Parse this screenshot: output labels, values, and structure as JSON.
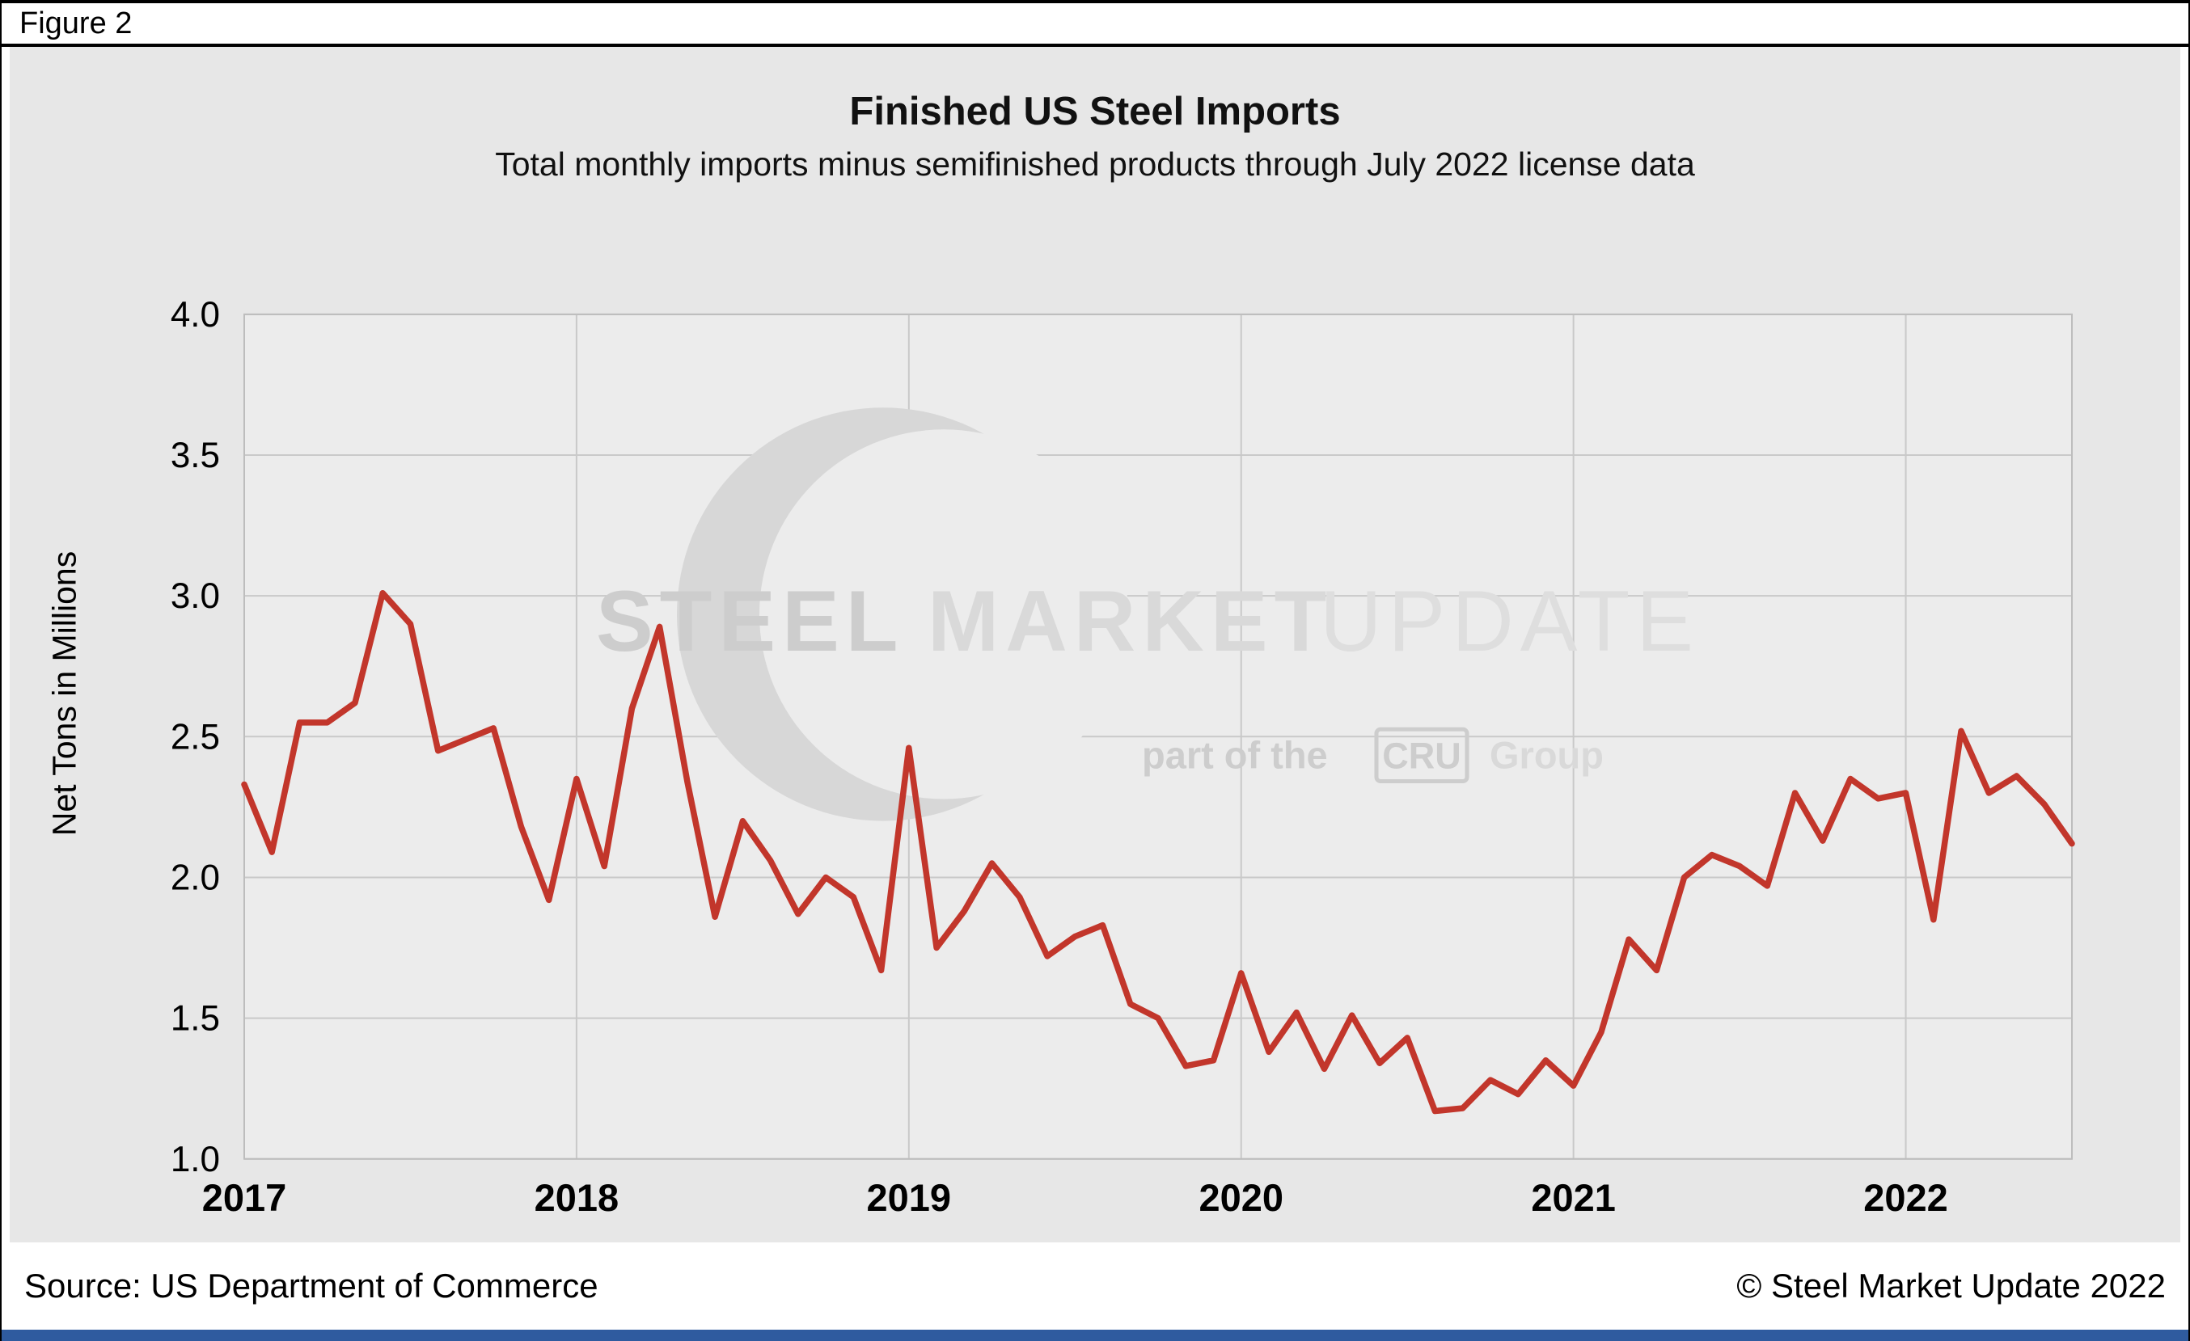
{
  "figure_label": "Figure 2",
  "chart_data": {
    "type": "line",
    "title": "Finished US Steel Imports",
    "subtitle": "Total monthly imports minus semifinished products through July 2022 license data",
    "ylabel": "Net Tons in Millions",
    "ylim": [
      1.0,
      4.0
    ],
    "yticks": [
      1.0,
      1.5,
      2.0,
      2.5,
      3.0,
      3.5,
      4.0
    ],
    "grid": true,
    "x_start": "2017-01",
    "x_end": "2022-07",
    "frequency": "monthly",
    "x_year_labels": [
      "2017",
      "2018",
      "2019",
      "2020",
      "2021",
      "2022"
    ],
    "x_year_tick_indices": [
      0,
      12,
      24,
      36,
      48,
      60
    ],
    "series": [
      {
        "name": "Finished US steel imports (net tons, millions)",
        "color": "#c2362b",
        "values": [
          2.33,
          2.09,
          2.55,
          2.55,
          2.62,
          3.01,
          2.9,
          2.45,
          2.49,
          2.53,
          2.18,
          1.92,
          2.35,
          2.04,
          2.6,
          2.89,
          2.34,
          1.86,
          2.2,
          2.06,
          1.87,
          2.0,
          1.93,
          1.67,
          2.46,
          1.75,
          1.88,
          2.05,
          1.93,
          1.72,
          1.79,
          1.83,
          1.55,
          1.5,
          1.33,
          1.35,
          1.66,
          1.38,
          1.52,
          1.32,
          1.51,
          1.34,
          1.43,
          1.17,
          1.18,
          1.28,
          1.23,
          1.35,
          1.26,
          1.45,
          1.78,
          1.67,
          2.0,
          2.08,
          2.04,
          1.97,
          2.3,
          2.13,
          2.35,
          2.28,
          2.3,
          1.85,
          2.52,
          2.3,
          2.36,
          2.26,
          2.12
        ]
      }
    ]
  },
  "watermark": {
    "brand_word_1": "STEEL",
    "brand_word_2": "MARKET",
    "brand_word_3": "UPDATE",
    "tagline_pre": "part of the",
    "tagline_box": "CRU",
    "tagline_post": "Group"
  },
  "footer": {
    "source": "Source: US Department of Commerce",
    "copyright": "© Steel Market Update 2022"
  },
  "colors": {
    "line": "#c2362b",
    "plot_background": "#ececec",
    "figure_background": "#e7e7e7",
    "gridline": "#c9c9c9",
    "footer_bar": "#2f5b9f",
    "watermark_gray": "#d2d2d2"
  }
}
